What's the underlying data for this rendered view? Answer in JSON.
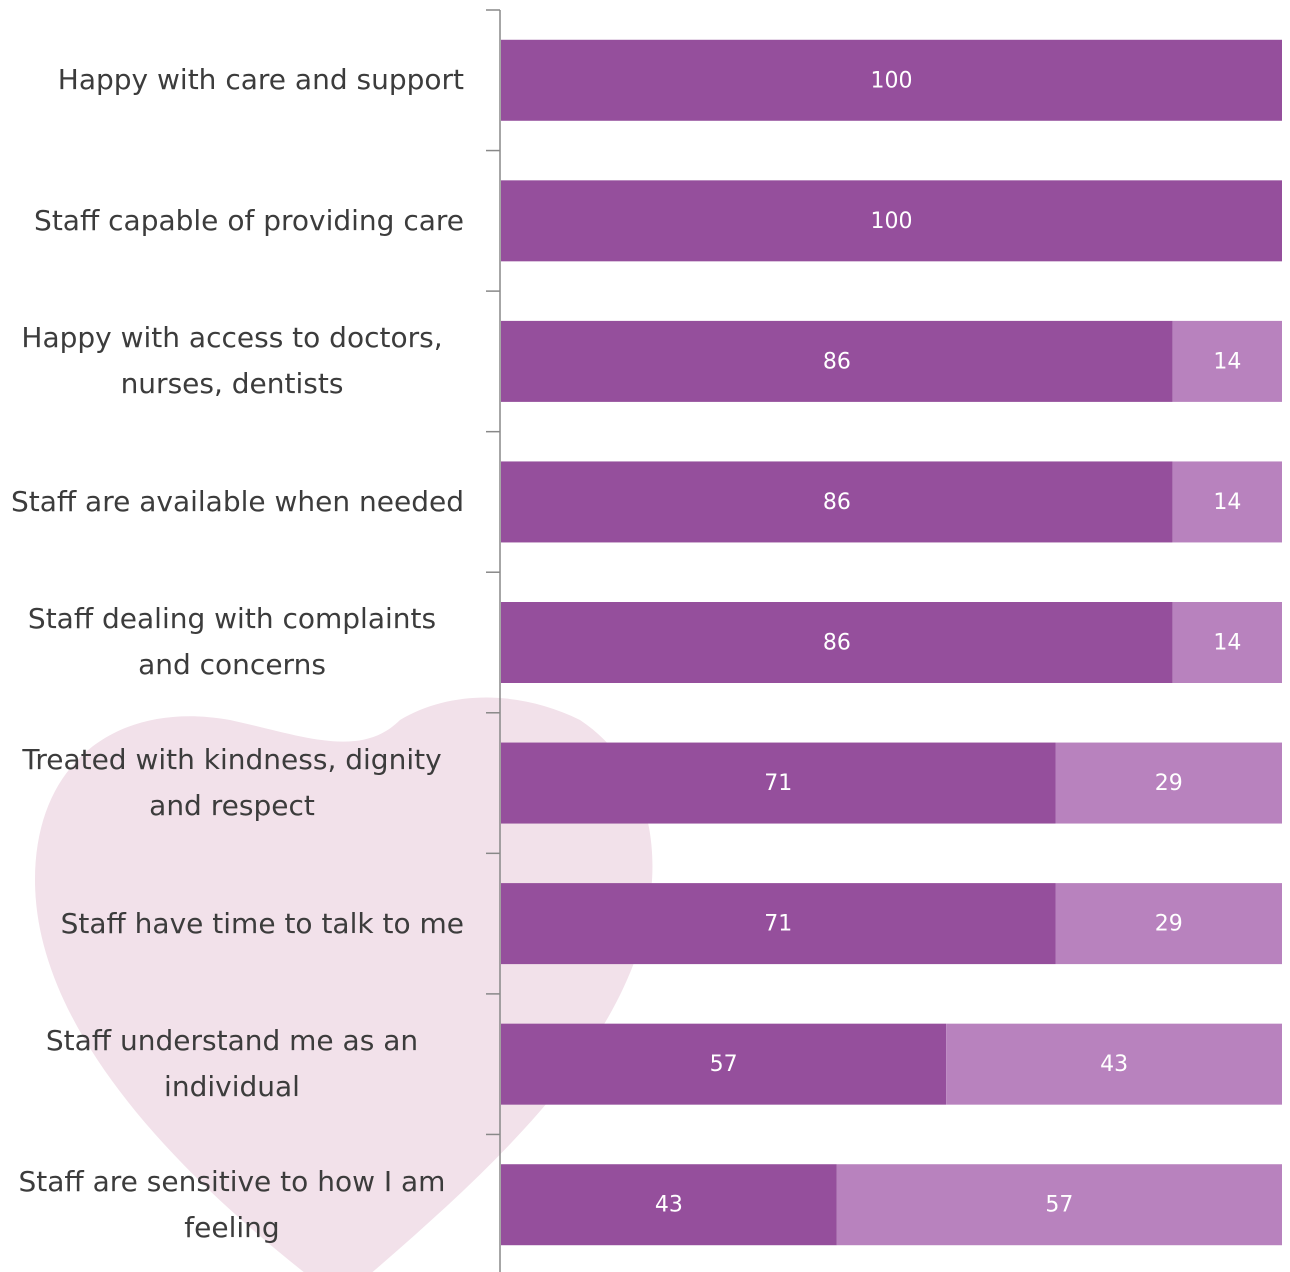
{
  "chart_data": {
    "type": "stacked_barh",
    "categories": [
      "Happy with care and support",
      "Staff capable of providing care",
      "Happy with access to doctors, nurses, dentists",
      "Staff are available when needed",
      "Staff dealing with complaints and concerns",
      "Treated with kindness, dignity and respect",
      "Staff have time to talk to me",
      "Staff understand me as an individual",
      "Staff are sensitive to how I am feeling"
    ],
    "series": [
      {
        "color": "#954f9c",
        "values": [
          100,
          100,
          86,
          86,
          86,
          71,
          71,
          57,
          43
        ]
      },
      {
        "color": "#b882be",
        "values": [
          0,
          0,
          14,
          14,
          14,
          29,
          29,
          43,
          57
        ]
      }
    ],
    "xlim": [
      0,
      100
    ]
  }
}
